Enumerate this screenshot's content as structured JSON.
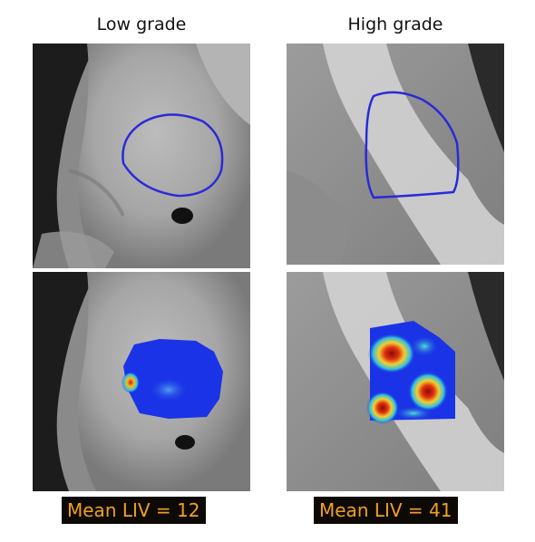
{
  "columns": {
    "low": {
      "title": "Low grade",
      "mean_liv": "Mean LIV = 12"
    },
    "high": {
      "title": "High grade",
      "mean_liv": "Mean LIV = 41"
    }
  },
  "colors": {
    "roi_outline": "#2a2ad8",
    "label_bg": "#0d0a06",
    "label_text": "#f0a020",
    "map_low": "#1a33e6",
    "map_hot": "#c8102e"
  }
}
